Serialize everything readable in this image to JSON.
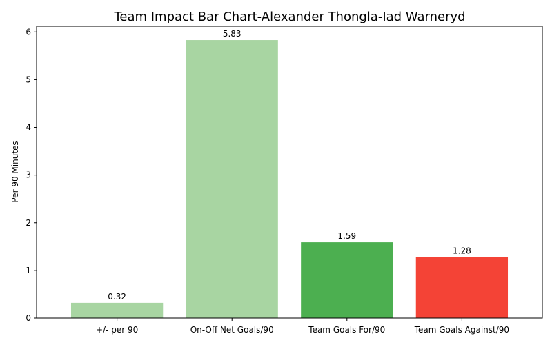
{
  "chart_data": {
    "type": "bar",
    "title": "Team Impact Bar Chart-Alexander Thongla-Iad Warneryd",
    "xlabel": "",
    "ylabel": "Per 90 Minutes",
    "categories": [
      "+/- per 90",
      "On-Off Net Goals/90",
      "Team Goals For/90",
      "Team Goals Against/90"
    ],
    "values": [
      0.32,
      5.83,
      1.59,
      1.28
    ],
    "value_labels": [
      "0.32",
      "5.83",
      "1.59",
      "1.28"
    ],
    "bar_colors": [
      "#a8d5a2",
      "#a8d5a2",
      "#4caf50",
      "#f44336"
    ],
    "ylim": [
      0,
      6.12
    ],
    "yticks": [
      0,
      1,
      2,
      3,
      4,
      5,
      6
    ],
    "grid": false,
    "legend": "none"
  }
}
